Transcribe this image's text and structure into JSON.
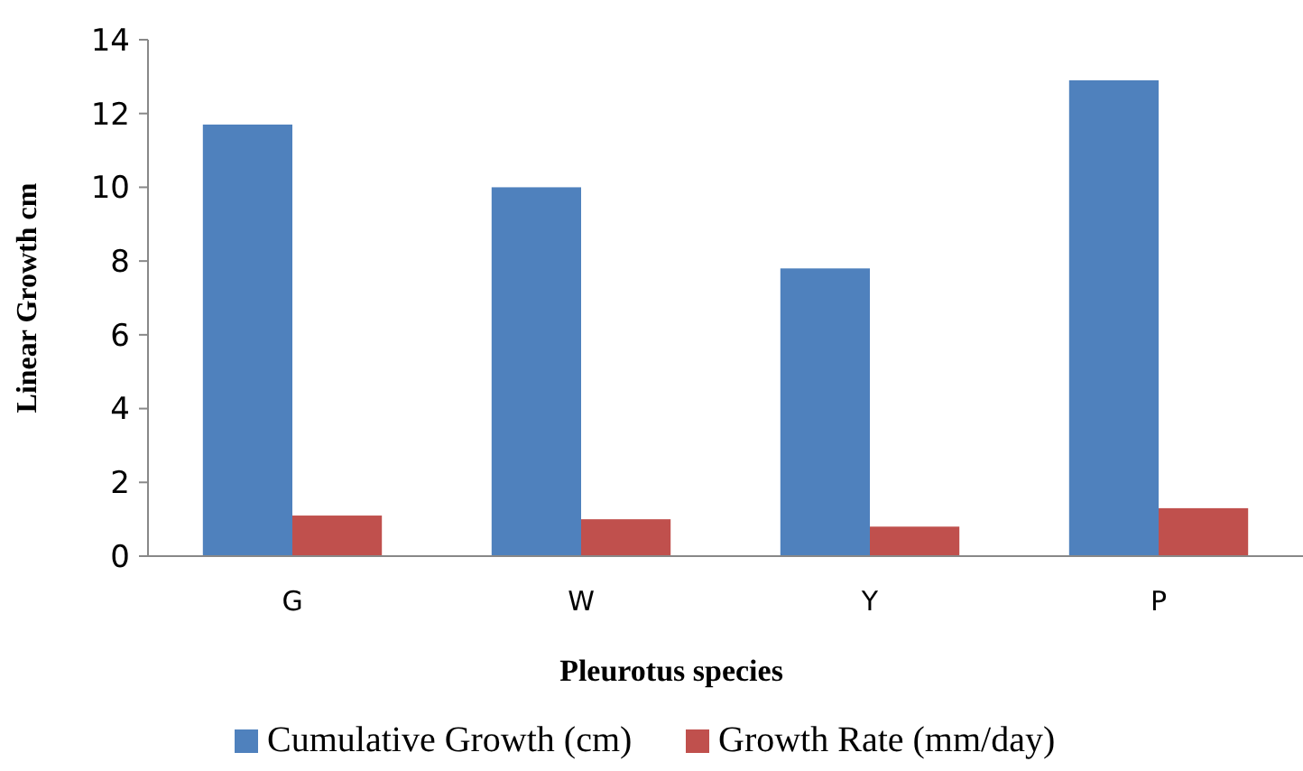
{
  "chart_data": {
    "type": "bar",
    "xlabel": "Pleurotus species",
    "ylabel": "Linear Growth cm",
    "categories": [
      "G",
      "W",
      "Y",
      "P"
    ],
    "series": [
      {
        "name": "Cumulative Growth (cm)",
        "color": "#4f81bd",
        "values": [
          11.7,
          10.0,
          7.8,
          12.9
        ]
      },
      {
        "name": "Growth Rate (mm/day)",
        "color": "#c0504d",
        "values": [
          1.1,
          1.0,
          0.8,
          1.3
        ]
      }
    ],
    "ylim": [
      0,
      14
    ],
    "yticks": [
      0,
      2,
      4,
      6,
      8,
      10,
      12,
      14
    ],
    "grid": false,
    "legend": "bottom"
  }
}
